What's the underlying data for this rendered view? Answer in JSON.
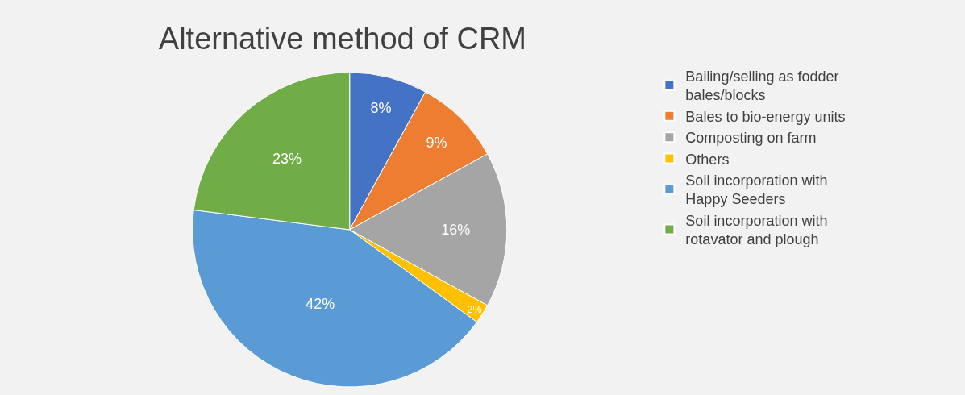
{
  "chart_data": {
    "type": "pie",
    "title": "Alternative method of CRM",
    "categories": [
      "Bailing/selling as fodder bales/blocks",
      "Bales to bio-energy units",
      "Composting on farm",
      "Others",
      "Soil incorporation with Happy Seeders",
      "Soil incorporation with rotavator and plough"
    ],
    "values": [
      8,
      9,
      16,
      2,
      42,
      23
    ],
    "colors": [
      "#4472c4",
      "#ed7d31",
      "#a5a5a5",
      "#ffc000",
      "#5b9bd5",
      "#70ad47"
    ],
    "value_labels": [
      "8%",
      "9%",
      "16%",
      "2%",
      "42%",
      "23%"
    ],
    "legend": "right"
  }
}
